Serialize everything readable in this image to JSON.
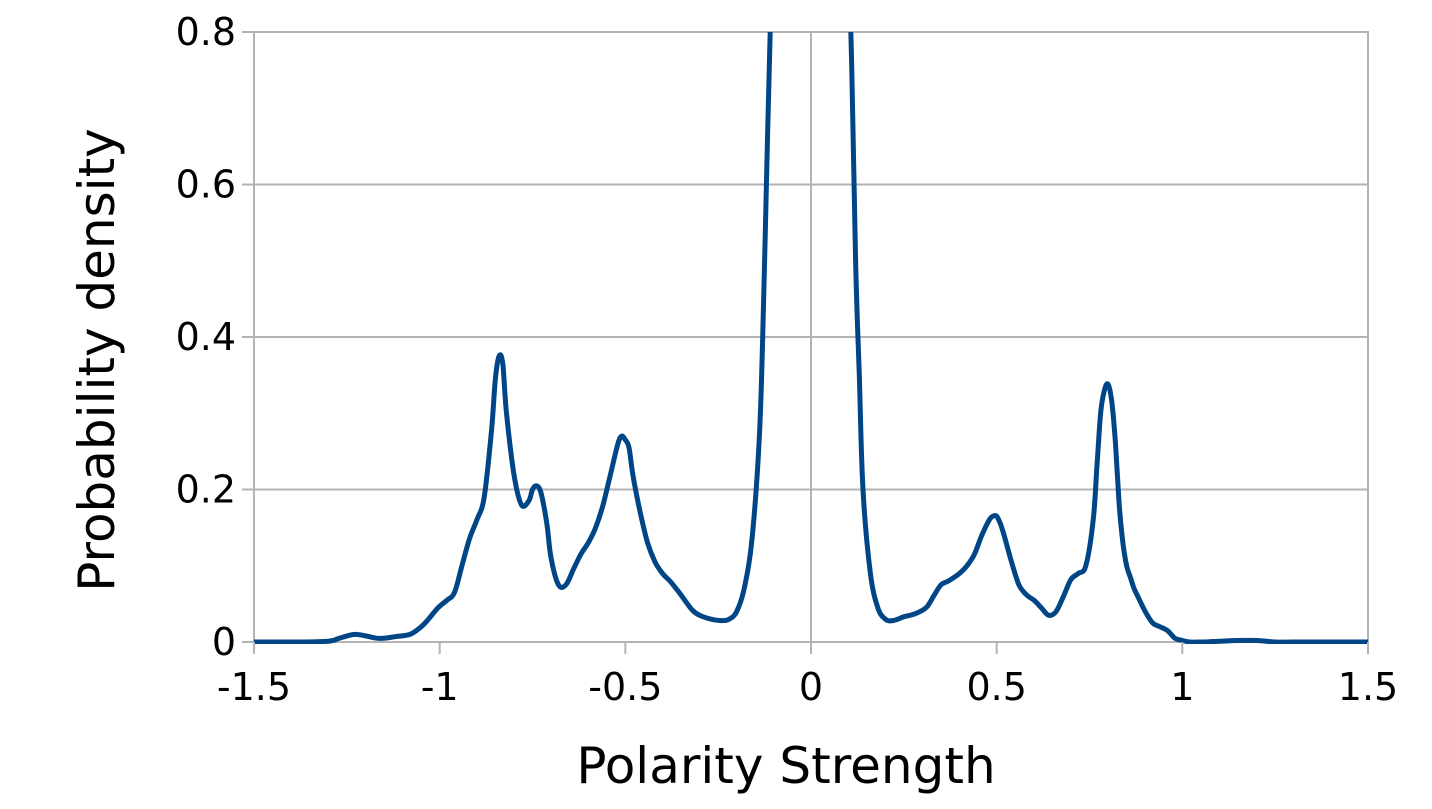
{
  "chart_data": {
    "type": "line",
    "title": "",
    "xlabel": "Polarity Strength",
    "ylabel": "Probability density",
    "xlim": [
      -1.5,
      1.5
    ],
    "ylim": [
      0,
      0.8
    ],
    "x_ticks": [
      -1.5,
      -1,
      -0.5,
      0,
      0.5,
      1,
      1.5
    ],
    "x_tick_labels": [
      "-1.5",
      "-1",
      "-0.5",
      "0",
      "0.5",
      "1",
      "1.5"
    ],
    "y_ticks": [
      0,
      0.2,
      0.4,
      0.6,
      0.8
    ],
    "y_tick_labels": [
      "0",
      "0.2",
      "0.4",
      "0.6",
      "0.8"
    ],
    "grid": "horizontal and vertical at x=0",
    "legend": "none",
    "series": [
      {
        "color": "#004586",
        "x": [
          -1.5,
          -1.4,
          -1.3,
          -1.27,
          -1.23,
          -1.2,
          -1.17,
          -1.15,
          -1.12,
          -1.08,
          -1.05,
          -1.03,
          -1.01,
          -1.0,
          -0.98,
          -0.96,
          -0.94,
          -0.92,
          -0.9,
          -0.88,
          -0.86,
          -0.85,
          -0.84,
          -0.83,
          -0.82,
          -0.8,
          -0.78,
          -0.76,
          -0.75,
          -0.74,
          -0.73,
          -0.72,
          -0.71,
          -0.7,
          -0.68,
          -0.66,
          -0.64,
          -0.62,
          -0.6,
          -0.58,
          -0.56,
          -0.54,
          -0.52,
          -0.51,
          -0.5,
          -0.49,
          -0.48,
          -0.46,
          -0.44,
          -0.42,
          -0.4,
          -0.38,
          -0.36,
          -0.34,
          -0.32,
          -0.3,
          -0.27,
          -0.24,
          -0.22,
          -0.2,
          -0.18,
          -0.16,
          -0.14,
          -0.13,
          -0.12,
          -0.11,
          -0.1,
          -0.09,
          0.09,
          0.1,
          0.11,
          0.12,
          0.13,
          0.14,
          0.16,
          0.18,
          0.2,
          0.22,
          0.25,
          0.28,
          0.31,
          0.33,
          0.35,
          0.37,
          0.4,
          0.42,
          0.44,
          0.46,
          0.48,
          0.49,
          0.5,
          0.51,
          0.52,
          0.54,
          0.56,
          0.58,
          0.6,
          0.62,
          0.64,
          0.66,
          0.68,
          0.7,
          0.72,
          0.74,
          0.76,
          0.77,
          0.78,
          0.79,
          0.8,
          0.81,
          0.82,
          0.83,
          0.84,
          0.85,
          0.86,
          0.87,
          0.88,
          0.9,
          0.92,
          0.94,
          0.96,
          0.98,
          1.0,
          1.02,
          1.04,
          1.06,
          1.1,
          1.15,
          1.2,
          1.25,
          1.3,
          1.4,
          1.5
        ],
        "y": [
          0,
          0,
          0.001,
          0.005,
          0.01,
          0.008,
          0.005,
          0.005,
          0.007,
          0.01,
          0.02,
          0.03,
          0.042,
          0.047,
          0.055,
          0.065,
          0.1,
          0.135,
          0.16,
          0.19,
          0.28,
          0.345,
          0.375,
          0.365,
          0.3,
          0.22,
          0.18,
          0.185,
          0.2,
          0.205,
          0.2,
          0.18,
          0.15,
          0.11,
          0.075,
          0.075,
          0.095,
          0.115,
          0.13,
          0.15,
          0.18,
          0.22,
          0.26,
          0.27,
          0.265,
          0.255,
          0.22,
          0.17,
          0.13,
          0.105,
          0.09,
          0.08,
          0.068,
          0.055,
          0.042,
          0.035,
          0.03,
          0.028,
          0.03,
          0.04,
          0.07,
          0.13,
          0.26,
          0.4,
          0.6,
          0.8,
          0.9,
          0.95,
          0.95,
          0.9,
          0.75,
          0.5,
          0.35,
          0.2,
          0.09,
          0.045,
          0.03,
          0.028,
          0.033,
          0.037,
          0.045,
          0.06,
          0.075,
          0.08,
          0.09,
          0.1,
          0.115,
          0.14,
          0.16,
          0.165,
          0.165,
          0.155,
          0.14,
          0.105,
          0.075,
          0.062,
          0.055,
          0.045,
          0.035,
          0.04,
          0.06,
          0.082,
          0.09,
          0.1,
          0.16,
          0.23,
          0.3,
          0.33,
          0.338,
          0.315,
          0.26,
          0.18,
          0.13,
          0.1,
          0.085,
          0.07,
          0.06,
          0.04,
          0.025,
          0.02,
          0.015,
          0.005,
          0.002,
          0,
          0,
          0,
          0.001,
          0.002,
          0.002,
          0,
          0,
          0,
          0
        ]
      }
    ]
  }
}
